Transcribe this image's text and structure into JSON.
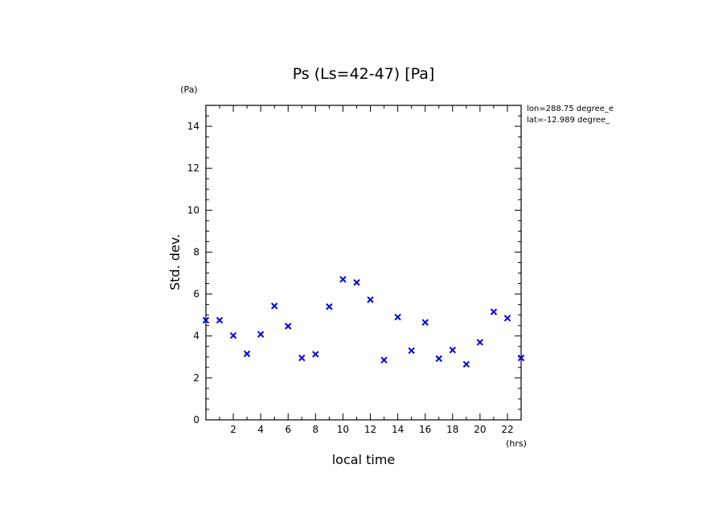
{
  "chart_data": {
    "type": "scatter",
    "title": "Ps (Ls=42-47) [Pa]",
    "xlabel": "local time",
    "ylabel": "Std. dev.",
    "x_unit": "(hrs)",
    "y_unit": "(Pa)",
    "xlim": [
      0,
      23
    ],
    "ylim": [
      0,
      15
    ],
    "xticks": [
      2,
      4,
      6,
      8,
      10,
      12,
      14,
      16,
      18,
      20,
      22
    ],
    "yticks": [
      0,
      2,
      4,
      6,
      8,
      10,
      12,
      14
    ],
    "grid": false,
    "marker": "x",
    "series_color": "#0000dd",
    "annotations": [
      "lon=288.75 degree_e",
      "lat=-12.989 degree_"
    ],
    "x": [
      0,
      1,
      2,
      3,
      4,
      5,
      6,
      7,
      8,
      9,
      10,
      11,
      12,
      13,
      14,
      15,
      16,
      17,
      18,
      19,
      20,
      21,
      22,
      23
    ],
    "y": [
      4.75,
      4.75,
      4.02,
      3.15,
      4.08,
      5.43,
      4.47,
      2.95,
      3.13,
      5.4,
      6.7,
      6.55,
      5.73,
      2.85,
      4.9,
      3.3,
      4.65,
      2.92,
      3.33,
      2.65,
      3.7,
      5.15,
      4.85,
      2.95
    ]
  }
}
